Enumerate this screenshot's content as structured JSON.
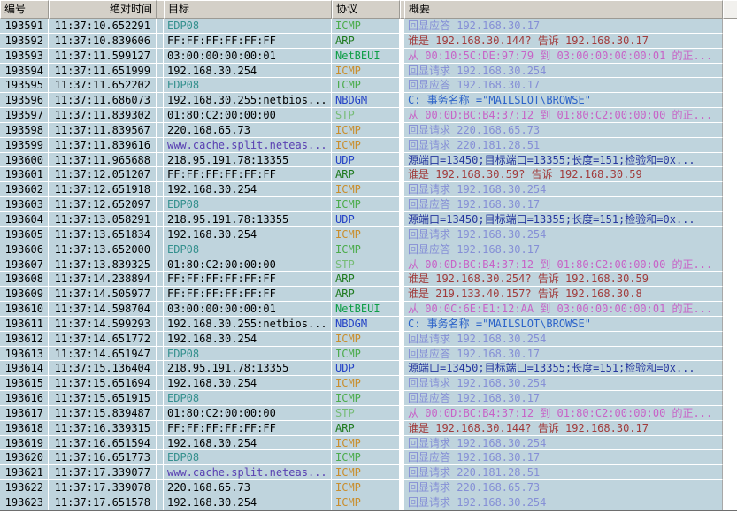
{
  "app": {
    "description": "packet-capture-list",
    "colors": {
      "row_bg": "#BFD4DD",
      "header_bg": "#D4D0C8",
      "separator": "#FFFFFF",
      "header_edge_dark": "#9C9A94",
      "list_bottom_edge": "#6E6E6E"
    },
    "text_styles": {
      "black": "#000000",
      "teal": "#35908E",
      "violet": "#5940B2",
      "green": "#4CAC4C",
      "orange": "#C98E2D",
      "dkgreen": "#1E7A1E",
      "brightgreen": "#0E9E46",
      "ltgreen": "#76BC76",
      "blue": "#2442C6",
      "lavender": "#858FD6",
      "red": "#A13B3B",
      "magenta": "#C763C7",
      "navy": "#26379E",
      "midblue": "#2C63C9"
    }
  },
  "table": {
    "header": {
      "number": "编号",
      "time": "绝对时间",
      "target": "目标",
      "protocol": "协议",
      "summary": "概要"
    },
    "rows": [
      {
        "no": "193591",
        "time": "11:37:10.652291",
        "target": "EDP08",
        "target_style": "teal",
        "protocol": "ICMP",
        "protocol_style": "green",
        "summary": "回显应答 192.168.30.17",
        "summary_style": "lavender"
      },
      {
        "no": "193592",
        "time": "11:37:10.839606",
        "target": "FF:FF:FF:FF:FF:FF",
        "target_style": "black",
        "protocol": "ARP",
        "protocol_style": "dkgreen",
        "summary": "谁是 192.168.30.144? 告诉 192.168.30.17",
        "summary_style": "red"
      },
      {
        "no": "193593",
        "time": "11:37:11.599127",
        "target": "03:00:00:00:00:01",
        "target_style": "black",
        "protocol": "NetBEUI",
        "protocol_style": "brightgreen",
        "summary": "从 00:10:5C:DE:97:79 到 03:00:00:00:00:01 的正...",
        "summary_style": "magenta"
      },
      {
        "no": "193594",
        "time": "11:37:11.651999",
        "target": "192.168.30.254",
        "target_style": "black",
        "protocol": "ICMP",
        "protocol_style": "orange",
        "summary": "回显请求 192.168.30.254",
        "summary_style": "lavender"
      },
      {
        "no": "193595",
        "time": "11:37:11.652202",
        "target": "EDP08",
        "target_style": "teal",
        "protocol": "ICMP",
        "protocol_style": "green",
        "summary": "回显应答 192.168.30.17",
        "summary_style": "lavender"
      },
      {
        "no": "193596",
        "time": "11:37:11.686073",
        "target": "192.168.30.255:netbios...",
        "target_style": "black",
        "protocol": "NBDGM",
        "protocol_style": "blue",
        "summary": "C: 事务名称 =\"MAILSLOT\\BROWSE\"",
        "summary_style": "midblue"
      },
      {
        "no": "193597",
        "time": "11:37:11.839302",
        "target": "01:80:C2:00:00:00",
        "target_style": "black",
        "protocol": "STP",
        "protocol_style": "ltgreen",
        "summary": "从 00:0D:BC:B4:37:12 到 01:80:C2:00:00:00 的正...",
        "summary_style": "magenta"
      },
      {
        "no": "193598",
        "time": "11:37:11.839567",
        "target": "220.168.65.73",
        "target_style": "black",
        "protocol": "ICMP",
        "protocol_style": "orange",
        "summary": "回显请求 220.168.65.73",
        "summary_style": "lavender"
      },
      {
        "no": "193599",
        "time": "11:37:11.839616",
        "target": "www.cache.split.neteas...",
        "target_style": "violet",
        "protocol": "ICMP",
        "protocol_style": "orange",
        "summary": "回显请求 220.181.28.51",
        "summary_style": "lavender"
      },
      {
        "no": "193600",
        "time": "11:37:11.965688",
        "target": "218.95.191.78:13355",
        "target_style": "black",
        "protocol": "UDP",
        "protocol_style": "blue",
        "summary": "源端口=13450;目标端口=13355;长度=151;检验和=0x...",
        "summary_style": "navy"
      },
      {
        "no": "193601",
        "time": "11:37:12.051207",
        "target": "FF:FF:FF:FF:FF:FF",
        "target_style": "black",
        "protocol": "ARP",
        "protocol_style": "dkgreen",
        "summary": "谁是 192.168.30.59? 告诉 192.168.30.59",
        "summary_style": "red"
      },
      {
        "no": "193602",
        "time": "11:37:12.651918",
        "target": "192.168.30.254",
        "target_style": "black",
        "protocol": "ICMP",
        "protocol_style": "orange",
        "summary": "回显请求 192.168.30.254",
        "summary_style": "lavender"
      },
      {
        "no": "193603",
        "time": "11:37:12.652097",
        "target": "EDP08",
        "target_style": "teal",
        "protocol": "ICMP",
        "protocol_style": "green",
        "summary": "回显应答 192.168.30.17",
        "summary_style": "lavender"
      },
      {
        "no": "193604",
        "time": "11:37:13.058291",
        "target": "218.95.191.78:13355",
        "target_style": "black",
        "protocol": "UDP",
        "protocol_style": "blue",
        "summary": "源端口=13450;目标端口=13355;长度=151;检验和=0x...",
        "summary_style": "navy"
      },
      {
        "no": "193605",
        "time": "11:37:13.651834",
        "target": "192.168.30.254",
        "target_style": "black",
        "protocol": "ICMP",
        "protocol_style": "orange",
        "summary": "回显请求 192.168.30.254",
        "summary_style": "lavender"
      },
      {
        "no": "193606",
        "time": "11:37:13.652000",
        "target": "EDP08",
        "target_style": "teal",
        "protocol": "ICMP",
        "protocol_style": "green",
        "summary": "回显应答 192.168.30.17",
        "summary_style": "lavender"
      },
      {
        "no": "193607",
        "time": "11:37:13.839325",
        "target": "01:80:C2:00:00:00",
        "target_style": "black",
        "protocol": "STP",
        "protocol_style": "ltgreen",
        "summary": "从 00:0D:BC:B4:37:12 到 01:80:C2:00:00:00 的正...",
        "summary_style": "magenta"
      },
      {
        "no": "193608",
        "time": "11:37:14.238894",
        "target": "FF:FF:FF:FF:FF:FF",
        "target_style": "black",
        "protocol": "ARP",
        "protocol_style": "dkgreen",
        "summary": "谁是 192.168.30.254? 告诉 192.168.30.59",
        "summary_style": "red"
      },
      {
        "no": "193609",
        "time": "11:37:14.505977",
        "target": "FF:FF:FF:FF:FF:FF",
        "target_style": "black",
        "protocol": "ARP",
        "protocol_style": "dkgreen",
        "summary": "谁是 219.133.40.157? 告诉 192.168.30.8",
        "summary_style": "red"
      },
      {
        "no": "193610",
        "time": "11:37:14.598704",
        "target": "03:00:00:00:00:01",
        "target_style": "black",
        "protocol": "NetBEUI",
        "protocol_style": "brightgreen",
        "summary": "从 00:0C:6E:E1:12:AA 到 03:00:00:00:00:01 的正...",
        "summary_style": "magenta"
      },
      {
        "no": "193611",
        "time": "11:37:14.599293",
        "target": "192.168.30.255:netbios...",
        "target_style": "black",
        "protocol": "NBDGM",
        "protocol_style": "blue",
        "summary": "C: 事务名称 =\"MAILSLOT\\BROWSE\"",
        "summary_style": "midblue"
      },
      {
        "no": "193612",
        "time": "11:37:14.651772",
        "target": "192.168.30.254",
        "target_style": "black",
        "protocol": "ICMP",
        "protocol_style": "orange",
        "summary": "回显请求 192.168.30.254",
        "summary_style": "lavender"
      },
      {
        "no": "193613",
        "time": "11:37:14.651947",
        "target": "EDP08",
        "target_style": "teal",
        "protocol": "ICMP",
        "protocol_style": "green",
        "summary": "回显应答 192.168.30.17",
        "summary_style": "lavender"
      },
      {
        "no": "193614",
        "time": "11:37:15.136404",
        "target": "218.95.191.78:13355",
        "target_style": "black",
        "protocol": "UDP",
        "protocol_style": "blue",
        "summary": "源端口=13450;目标端口=13355;长度=151;检验和=0x...",
        "summary_style": "navy"
      },
      {
        "no": "193615",
        "time": "11:37:15.651694",
        "target": "192.168.30.254",
        "target_style": "black",
        "protocol": "ICMP",
        "protocol_style": "orange",
        "summary": "回显请求 192.168.30.254",
        "summary_style": "lavender"
      },
      {
        "no": "193616",
        "time": "11:37:15.651915",
        "target": "EDP08",
        "target_style": "teal",
        "protocol": "ICMP",
        "protocol_style": "green",
        "summary": "回显应答 192.168.30.17",
        "summary_style": "lavender"
      },
      {
        "no": "193617",
        "time": "11:37:15.839487",
        "target": "01:80:C2:00:00:00",
        "target_style": "black",
        "protocol": "STP",
        "protocol_style": "ltgreen",
        "summary": "从 00:0D:BC:B4:37:12 到 01:80:C2:00:00:00 的正...",
        "summary_style": "magenta"
      },
      {
        "no": "193618",
        "time": "11:37:16.339315",
        "target": "FF:FF:FF:FF:FF:FF",
        "target_style": "black",
        "protocol": "ARP",
        "protocol_style": "dkgreen",
        "summary": "谁是 192.168.30.144? 告诉 192.168.30.17",
        "summary_style": "red"
      },
      {
        "no": "193619",
        "time": "11:37:16.651594",
        "target": "192.168.30.254",
        "target_style": "black",
        "protocol": "ICMP",
        "protocol_style": "orange",
        "summary": "回显请求 192.168.30.254",
        "summary_style": "lavender"
      },
      {
        "no": "193620",
        "time": "11:37:16.651773",
        "target": "EDP08",
        "target_style": "teal",
        "protocol": "ICMP",
        "protocol_style": "green",
        "summary": "回显应答 192.168.30.17",
        "summary_style": "lavender"
      },
      {
        "no": "193621",
        "time": "11:37:17.339077",
        "target": "www.cache.split.neteas...",
        "target_style": "violet",
        "protocol": "ICMP",
        "protocol_style": "orange",
        "summary": "回显请求 220.181.28.51",
        "summary_style": "lavender"
      },
      {
        "no": "193622",
        "time": "11:37:17.339078",
        "target": "220.168.65.73",
        "target_style": "black",
        "protocol": "ICMP",
        "protocol_style": "orange",
        "summary": "回显请求 220.168.65.73",
        "summary_style": "lavender"
      },
      {
        "no": "193623",
        "time": "11:37:17.651578",
        "target": "192.168.30.254",
        "target_style": "black",
        "protocol": "ICMP",
        "protocol_style": "orange",
        "summary": "回显请求 192.168.30.254",
        "summary_style": "lavender"
      }
    ]
  }
}
